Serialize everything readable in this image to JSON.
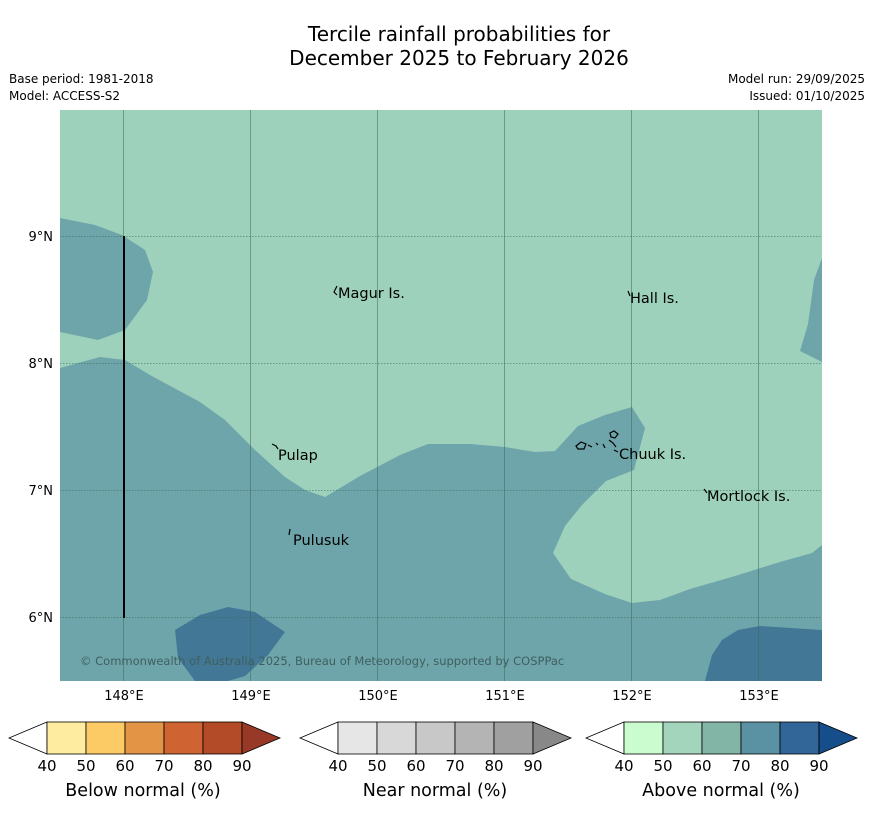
{
  "header": {
    "title_line1": "Tercile rainfall probabilities for",
    "title_line2": "December 2025 to February 2026",
    "base_period": "Base period: 1981-2018",
    "model": "Model: ACCESS-S2",
    "model_run": "Model run: 29/09/2025",
    "issued": "Issued: 01/10/2025"
  },
  "map": {
    "x_ticks": [
      "148°E",
      "149°E",
      "150°E",
      "151°E",
      "152°E",
      "153°E"
    ],
    "y_ticks": [
      "9°N",
      "8°N",
      "7°N",
      "6°N"
    ],
    "places": {
      "magur": "Magur Is.",
      "hall": "Hall Is.",
      "pulap": "Pulap",
      "chuuk": "Chuuk Is.",
      "mortlock": "Mortlock Is.",
      "pulusuk": "Pulusuk"
    },
    "copyright": "© Commonwealth of Australia 2025, Bureau of Meteorology, supported by COSPPac",
    "colors": {
      "above_50_60": "#9dd1bb",
      "above_60_70": "#6ea5aa",
      "above_70_80": "#427896",
      "grid": "#3d6b57"
    }
  },
  "legends": {
    "below": {
      "title": "Below normal (%)",
      "ticks": [
        "40",
        "50",
        "60",
        "70",
        "80",
        "90"
      ],
      "colors": [
        "#ffffff",
        "#feeda0",
        "#fdcb66",
        "#e49445",
        "#cf6432",
        "#b34b28",
        "#983826"
      ]
    },
    "near": {
      "title": "Near normal (%)",
      "ticks": [
        "40",
        "50",
        "60",
        "70",
        "80",
        "90"
      ],
      "colors": [
        "#ffffff",
        "#e6e6e6",
        "#d8d8d8",
        "#c8c8c8",
        "#b4b4b4",
        "#a0a0a0",
        "#888888"
      ]
    },
    "above": {
      "title": "Above normal (%)",
      "ticks": [
        "40",
        "50",
        "60",
        "70",
        "80",
        "90"
      ],
      "colors": [
        "#ffffff",
        "#cbfccf",
        "#a2d5bc",
        "#83b5a6",
        "#5b92a3",
        "#336698",
        "#154e8a"
      ]
    }
  }
}
